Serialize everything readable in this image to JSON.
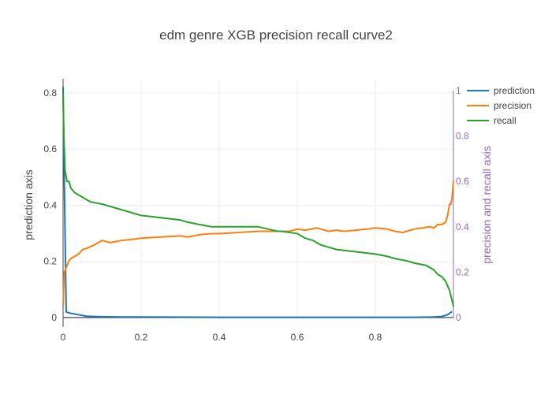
{
  "chart_data": {
    "type": "line",
    "title": "edm genre XGB precision recall curve2",
    "xlabel": "",
    "ylabel_left": "prediction axis",
    "ylabel_right": "precision and recall axis",
    "xlim": [
      0,
      1
    ],
    "ylim_left": [
      0,
      0.85
    ],
    "ylim_right": [
      0,
      1
    ],
    "x_ticks": [
      0,
      0.2,
      0.4,
      0.6,
      0.8
    ],
    "x_tick_labels": [
      "0",
      "0.2",
      "0.4",
      "0.6",
      "0.8"
    ],
    "y_left_ticks": [
      0,
      0.2,
      0.4,
      0.6,
      0.8
    ],
    "y_left_tick_labels": [
      "0",
      "0.2",
      "0.4",
      "0.6",
      "0.8"
    ],
    "y_right_ticks": [
      0,
      0.2,
      0.4,
      0.6,
      0.8,
      1
    ],
    "y_right_tick_labels": [
      "0",
      "0.2",
      "0.4",
      "0.6",
      "0.8",
      "1"
    ],
    "grid": true,
    "legend_position": "top-right",
    "colors": {
      "prediction": "#1f77b4",
      "precision": "#ff7f0e",
      "recall": "#2ca02c",
      "right_axis": "#9467bd"
    },
    "series": [
      {
        "name": "prediction",
        "axis": "left",
        "x": [
          0,
          0.003,
          0.008,
          0.02,
          0.04,
          0.06,
          0.08,
          0.1,
          0.15,
          0.2,
          0.4,
          0.6,
          0.8,
          0.9,
          0.95,
          0.97,
          0.985,
          0.995
        ],
        "y": [
          0.82,
          0.5,
          0.02,
          0.015,
          0.01,
          0.005,
          0.004,
          0.003,
          0.002,
          0.002,
          0.001,
          0.001,
          0.001,
          0.001,
          0.002,
          0.004,
          0.01,
          0.02
        ]
      },
      {
        "name": "precision",
        "axis": "right",
        "x": [
          0,
          0.003,
          0.008,
          0.015,
          0.02,
          0.03,
          0.04,
          0.05,
          0.06,
          0.08,
          0.1,
          0.12,
          0.15,
          0.18,
          0.2,
          0.25,
          0.3,
          0.32,
          0.35,
          0.38,
          0.4,
          0.45,
          0.5,
          0.55,
          0.58,
          0.6,
          0.62,
          0.65,
          0.68,
          0.7,
          0.72,
          0.75,
          0.78,
          0.8,
          0.83,
          0.85,
          0.87,
          0.9,
          0.92,
          0.94,
          0.95,
          0.96,
          0.97,
          0.975,
          0.98,
          0.985,
          0.99,
          0.993,
          0.996,
          1.0
        ],
        "y": [
          0.05,
          0.2,
          0.22,
          0.25,
          0.26,
          0.27,
          0.28,
          0.3,
          0.305,
          0.32,
          0.34,
          0.33,
          0.34,
          0.345,
          0.35,
          0.355,
          0.36,
          0.355,
          0.365,
          0.37,
          0.37,
          0.375,
          0.38,
          0.38,
          0.38,
          0.39,
          0.385,
          0.395,
          0.38,
          0.385,
          0.38,
          0.385,
          0.39,
          0.395,
          0.39,
          0.38,
          0.375,
          0.39,
          0.395,
          0.4,
          0.395,
          0.41,
          0.41,
          0.415,
          0.42,
          0.45,
          0.5,
          0.5,
          0.52,
          0.6
        ]
      },
      {
        "name": "recall",
        "axis": "right",
        "x": [
          0,
          0.002,
          0.005,
          0.01,
          0.015,
          0.02,
          0.025,
          0.03,
          0.04,
          0.05,
          0.06,
          0.07,
          0.1,
          0.14,
          0.18,
          0.2,
          0.25,
          0.3,
          0.32,
          0.35,
          0.38,
          0.4,
          0.45,
          0.5,
          0.55,
          0.56,
          0.6,
          0.62,
          0.64,
          0.66,
          0.68,
          0.7,
          0.75,
          0.8,
          0.83,
          0.85,
          0.88,
          0.9,
          0.93,
          0.94,
          0.95,
          0.96,
          0.97,
          0.98,
          0.99,
          1.0
        ],
        "y": [
          0.98,
          0.8,
          0.65,
          0.6,
          0.6,
          0.57,
          0.56,
          0.55,
          0.54,
          0.53,
          0.52,
          0.51,
          0.5,
          0.48,
          0.46,
          0.45,
          0.44,
          0.43,
          0.42,
          0.41,
          0.4,
          0.4,
          0.4,
          0.4,
          0.38,
          0.38,
          0.37,
          0.35,
          0.34,
          0.32,
          0.31,
          0.3,
          0.29,
          0.28,
          0.27,
          0.26,
          0.25,
          0.24,
          0.23,
          0.22,
          0.21,
          0.19,
          0.18,
          0.16,
          0.12,
          0.05
        ]
      }
    ]
  }
}
